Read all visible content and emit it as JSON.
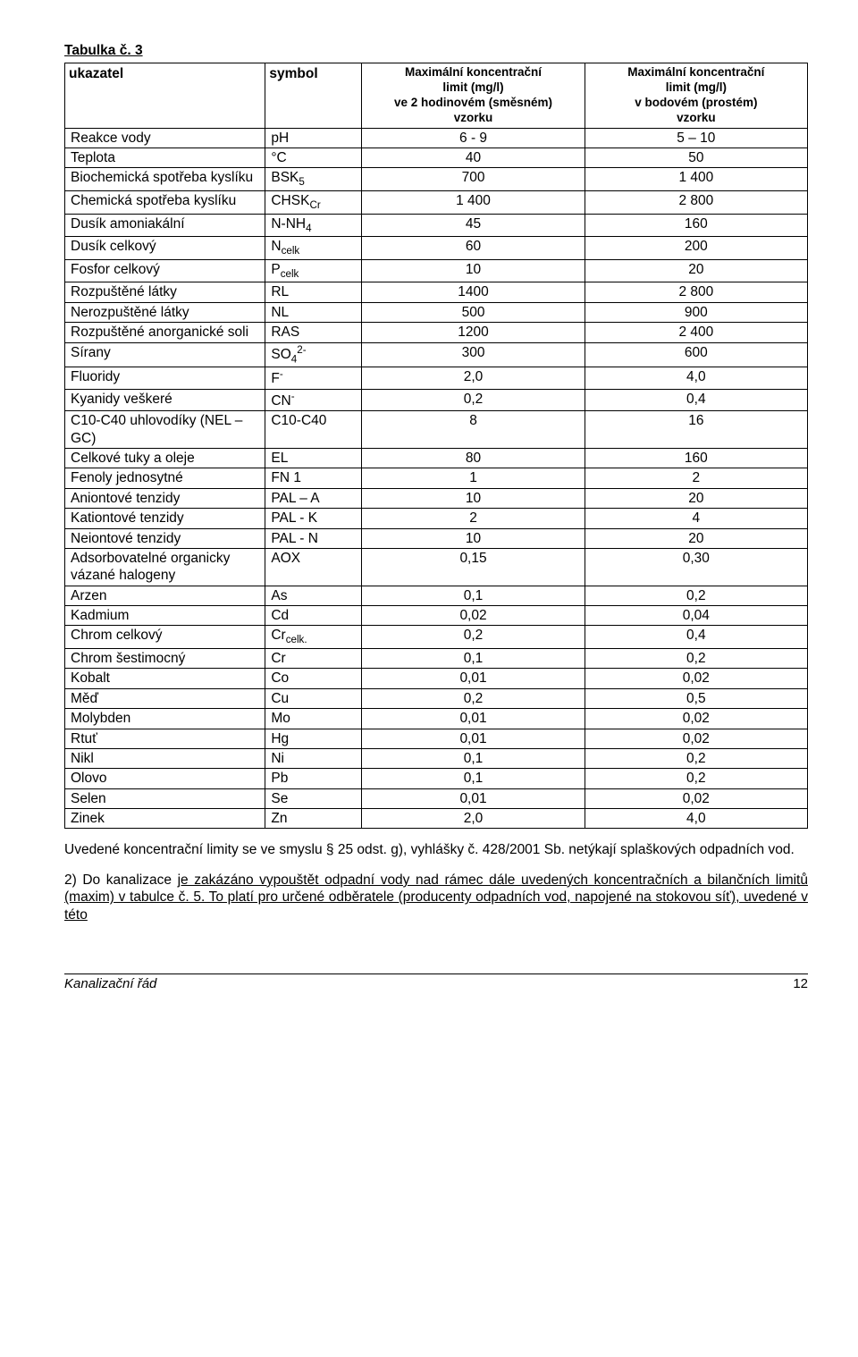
{
  "title": "Tabulka č. 3",
  "columns": {
    "c1": "ukazatel",
    "c2": "symbol",
    "c3_l1": "Maximální koncentrační",
    "c3_l2": "limit (mg/l)",
    "c3_l3": "ve 2 hodinovém (směsném)",
    "c3_l4": "vzorku",
    "c4_l1": "Maximální koncentrační",
    "c4_l2": "limit (mg/l)",
    "c4_l3": "v bodovém (prostém)",
    "c4_l4": "vzorku"
  },
  "rows": [
    {
      "ind": "Reakce vody",
      "sym": "pH",
      "v1": "6 - 9",
      "v2": "5 – 10"
    },
    {
      "ind": "Teplota",
      "sym": "°C",
      "v1": "40",
      "v2": "50"
    },
    {
      "ind": "Biochemická spotřeba kyslíku",
      "sym": "BSK<sub>5</sub>",
      "v1": "700",
      "v2": "1 400"
    },
    {
      "ind": "Chemická spotřeba kyslíku",
      "sym": "CHSK<sub>Cr</sub>",
      "v1": "1 400",
      "v2": "2 800"
    },
    {
      "ind": "Dusík amoniakální",
      "sym": "N-NH<sub>4</sub>",
      "v1": "45",
      "v2": "160"
    },
    {
      "ind": "Dusík celkový",
      "sym": "N<sub>celk</sub>",
      "v1": "60",
      "v2": "200"
    },
    {
      "ind": "Fosfor celkový",
      "sym": "P<sub>celk</sub>",
      "v1": "10",
      "v2": "20"
    },
    {
      "ind": "Rozpuštěné látky",
      "sym": "RL",
      "v1": "1400",
      "v2": "2 800"
    },
    {
      "ind": "Nerozpuštěné látky",
      "sym": "NL",
      "v1": "500",
      "v2": "900"
    },
    {
      "ind": "Rozpuštěné anorganické soli",
      "sym": "RAS",
      "v1": "1200",
      "v2": "2 400"
    },
    {
      "ind": "Sírany",
      "sym": "SO<sub>4</sub><sup>2-</sup>",
      "v1": "300",
      "v2": "600"
    },
    {
      "ind": "Fluoridy",
      "sym": "F<sup>-</sup>",
      "v1": "2,0",
      "v2": "4,0"
    },
    {
      "ind": "Kyanidy veškeré",
      "sym": "CN<sup>-</sup>",
      "v1": "0,2",
      "v2": "0,4"
    },
    {
      "ind": "C10-C40 uhlovodíky (NEL – GC)",
      "sym": "C10-C40",
      "v1": "8",
      "v2": "16"
    },
    {
      "ind": "Celkové tuky a oleje",
      "sym": "EL",
      "v1": "80",
      "v2": "160"
    },
    {
      "ind": "Fenoly jednosytné",
      "sym": "FN 1",
      "v1": "1",
      "v2": "2"
    },
    {
      "ind": "Aniontové tenzidy",
      "sym": "PAL – A",
      "v1": "10",
      "v2": "20"
    },
    {
      "ind": "Kationtové tenzidy",
      "sym": "PAL - K",
      "v1": "2",
      "v2": "4"
    },
    {
      "ind": "Neiontové tenzidy",
      "sym": "PAL - N",
      "v1": "10",
      "v2": "20"
    },
    {
      "ind": "Adsorbovatelné organicky vázané halogeny",
      "sym": "AOX",
      "v1": "0,15",
      "v2": "0,30"
    },
    {
      "ind": "Arzen",
      "sym": "As",
      "v1": "0,1",
      "v2": "0,2"
    },
    {
      "ind": "Kadmium",
      "sym": "Cd",
      "v1": "0,02",
      "v2": "0,04"
    },
    {
      "ind": "Chrom celkový",
      "sym": "Cr<sub>celk.</sub>",
      "v1": "0,2",
      "v2": "0,4"
    },
    {
      "ind": "Chrom šestimocný",
      "sym": "Cr",
      "v1": "0,1",
      "v2": "0,2"
    },
    {
      "ind": "Kobalt",
      "sym": "Co",
      "v1": "0,01",
      "v2": "0,02"
    },
    {
      "ind": "Měď",
      "sym": "Cu",
      "v1": "0,2",
      "v2": "0,5"
    },
    {
      "ind": "Molybden",
      "sym": "Mo",
      "v1": "0,01",
      "v2": "0,02"
    },
    {
      "ind": "Rtuť",
      "sym": "Hg",
      "v1": "0,01",
      "v2": "0,02"
    },
    {
      "ind": "Nikl",
      "sym": "Ni",
      "v1": "0,1",
      "v2": "0,2"
    },
    {
      "ind": "Olovo",
      "sym": "Pb",
      "v1": "0,1",
      "v2": "0,2"
    },
    {
      "ind": "Selen",
      "sym": "Se",
      "v1": "0,01",
      "v2": "0,02"
    },
    {
      "ind": "Zinek",
      "sym": "Zn",
      "v1": "2,0",
      "v2": "4,0"
    }
  ],
  "para1": "Uvedené koncentrační limity se ve smyslu § 25 odst. g), vyhlášky č. 428/2001 Sb. netýkají splaškových odpadních vod.",
  "para2_pre": "2) Do kanalizace ",
  "para2_u": "je zakázáno vypouštět odpadní vody nad rámec dále uvedených koncentračních a bilančních limitů (maxim) v tabulce č. 5. To platí pro určené odběratele (producenty odpadních vod, napojené na stokovou síť), uvedené v této",
  "footer": {
    "left": "Kanalizační řád",
    "page": "12"
  }
}
